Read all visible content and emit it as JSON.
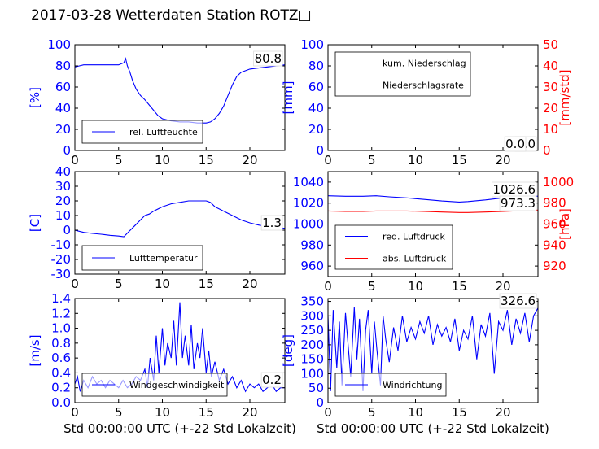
{
  "title": "2017-03-28 Wetterdaten Station ROTZ□",
  "colors": {
    "primary": "#0000ff",
    "secondary": "#ff0000",
    "axis": "#000000"
  },
  "chart_data": [
    {
      "type": "line",
      "id": "humidity",
      "ylabel": "[%]",
      "xlim": [
        0,
        24
      ],
      "ylim": [
        0,
        100
      ],
      "xticks": [
        0,
        5,
        10,
        15,
        20
      ],
      "yticks": [
        0,
        20,
        40,
        60,
        80,
        100
      ],
      "legend_position": "lower-left",
      "grid": false,
      "series": [
        {
          "name": "rel. Luftfeuchte",
          "color": "#0000ff",
          "current_label": "80.8",
          "x": [
            0,
            0.5,
            1,
            2,
            3,
            4,
            5,
            5.6,
            5.8,
            6.0,
            6.3,
            6.6,
            7.0,
            7.5,
            8.0,
            8.5,
            9.0,
            9.5,
            10,
            11,
            12,
            13,
            14,
            15,
            15.5,
            16,
            16.5,
            17,
            17.5,
            18,
            18.5,
            19,
            20,
            21,
            22,
            23,
            24
          ],
          "y": [
            79,
            80,
            81,
            81,
            81,
            81,
            81,
            83,
            87,
            80,
            74,
            66,
            58,
            52,
            48,
            43,
            38,
            33,
            30,
            28,
            27,
            27,
            26,
            26,
            27,
            30,
            35,
            42,
            52,
            62,
            70,
            74,
            77,
            78,
            79,
            80,
            81
          ]
        }
      ]
    },
    {
      "type": "line",
      "id": "precipitation",
      "ylabel": "[mm]",
      "y2label": "[mm/std]",
      "xlim": [
        0,
        24
      ],
      "ylim": [
        0,
        100
      ],
      "y2lim": [
        0,
        50
      ],
      "xticks": [
        0,
        5,
        10,
        15,
        20
      ],
      "yticks": [
        0,
        20,
        40,
        60,
        80,
        100
      ],
      "y2ticks": [
        0,
        10,
        20,
        30,
        40,
        50
      ],
      "legend_position": "upper-left",
      "grid": false,
      "series": [
        {
          "name": "kum. Niederschlag",
          "color": "#0000ff",
          "axis": "left",
          "current_label": "0.0",
          "x": [
            0,
            24
          ],
          "y": [
            0,
            0
          ]
        },
        {
          "name": "Niederschlagsrate",
          "color": "#ff0000",
          "axis": "right",
          "current_label": "0.0",
          "x": [
            0,
            24
          ],
          "y": [
            0,
            0
          ]
        }
      ]
    },
    {
      "type": "line",
      "id": "temperature",
      "ylabel": "[C]",
      "xlim": [
        0,
        24
      ],
      "ylim": [
        -30,
        40
      ],
      "xticks": [
        0,
        5,
        10,
        15,
        20
      ],
      "yticks": [
        -30,
        -20,
        -10,
        0,
        10,
        20,
        30,
        40
      ],
      "legend_position": "lower-left",
      "grid": false,
      "series": [
        {
          "name": "Lufttemperatur",
          "color": "#0000ff",
          "current_label": "1.3",
          "x": [
            0,
            1,
            2,
            3,
            4,
            5,
            5.6,
            6.0,
            6.5,
            7,
            7.5,
            8,
            8.5,
            9,
            10,
            11,
            12,
            13,
            14,
            15,
            15.5,
            16,
            17,
            18,
            19,
            20,
            21,
            22,
            23,
            24
          ],
          "y": [
            0,
            -1.5,
            -2.2,
            -2.8,
            -3.5,
            -4,
            -4.5,
            -2,
            1,
            4,
            7,
            10,
            11,
            13,
            16,
            18,
            19,
            20,
            20,
            20,
            19,
            16,
            13,
            10,
            7,
            5,
            3.5,
            2.5,
            1.8,
            1.3
          ]
        }
      ]
    },
    {
      "type": "line",
      "id": "pressure",
      "ylabel": "",
      "y2label": "[hPa]",
      "xlim": [
        0,
        24
      ],
      "ylim": [
        950,
        1050
      ],
      "y2lim": [
        910,
        1010
      ],
      "xticks": [
        0,
        5,
        10,
        15,
        20
      ],
      "yticks": [
        960,
        980,
        1000,
        1020,
        1040
      ],
      "y2ticks": [
        920,
        940,
        960,
        980,
        1000
      ],
      "legend_position": "lower-left",
      "grid": false,
      "series": [
        {
          "name": "red. Luftdruck",
          "color": "#0000ff",
          "axis": "left",
          "current_label": "1026.6",
          "x": [
            0,
            2,
            4,
            5.5,
            7,
            9,
            11,
            13,
            15,
            16,
            18,
            20,
            22,
            24
          ],
          "y": [
            1027,
            1026.5,
            1026.5,
            1027,
            1026,
            1025,
            1023.5,
            1022,
            1021,
            1021.5,
            1023,
            1025,
            1026,
            1026.6
          ]
        },
        {
          "name": "abs. Luftdruck",
          "color": "#ff0000",
          "axis": "right",
          "current_label": "973.3",
          "x": [
            0,
            2,
            4,
            5.5,
            7,
            9,
            11,
            13,
            15,
            16,
            18,
            20,
            22,
            24
          ],
          "y": [
            972.5,
            972,
            972,
            972.5,
            972.5,
            972.5,
            972,
            971.5,
            971,
            971,
            971.5,
            972,
            972.8,
            973.3
          ]
        }
      ]
    },
    {
      "type": "line",
      "id": "windspeed",
      "ylabel": "[m/s]",
      "xlim": [
        0,
        24
      ],
      "ylim": [
        0,
        1.4
      ],
      "xticks": [
        0,
        5,
        10,
        15,
        20
      ],
      "yticks": [
        0.0,
        0.2,
        0.4,
        0.6,
        0.8,
        1.0,
        1.2,
        1.4
      ],
      "legend_position": "lower-left",
      "grid": false,
      "series": [
        {
          "name": "Windgeschwindigkeit",
          "color": "#0000ff",
          "current_label": "0.2",
          "x": [
            0,
            0.3,
            0.6,
            1,
            1.5,
            2,
            2.5,
            3,
            3.5,
            4,
            4.5,
            5,
            5.5,
            6,
            6.5,
            7,
            7.5,
            8,
            8.3,
            8.6,
            9,
            9.3,
            9.6,
            10,
            10.3,
            10.6,
            11,
            11.3,
            11.6,
            12,
            12.3,
            12.6,
            13,
            13.3,
            13.6,
            14,
            14.3,
            14.6,
            15,
            15.3,
            15.6,
            16,
            16.5,
            17,
            17.5,
            18,
            18.5,
            19,
            19.5,
            20,
            20.5,
            21,
            21.5,
            22,
            22.5,
            23,
            23.5,
            24
          ],
          "y": [
            0.25,
            0.35,
            0.15,
            0.3,
            0.2,
            0.35,
            0.25,
            0.3,
            0.2,
            0.3,
            0.25,
            0.2,
            0.3,
            0.2,
            0.25,
            0.35,
            0.3,
            0.45,
            0.2,
            0.6,
            0.3,
            0.9,
            0.4,
            1.0,
            0.5,
            0.8,
            0.6,
            1.1,
            0.5,
            1.35,
            0.6,
            0.9,
            0.5,
            1.05,
            0.45,
            0.8,
            0.6,
            1.0,
            0.4,
            0.7,
            0.35,
            0.55,
            0.3,
            0.45,
            0.25,
            0.35,
            0.2,
            0.3,
            0.15,
            0.25,
            0.2,
            0.25,
            0.15,
            0.2,
            0.25,
            0.15,
            0.2,
            0.2
          ]
        }
      ]
    },
    {
      "type": "line",
      "id": "winddirection",
      "ylabel": "[deg]",
      "xlabel": "Std 00:00:00 UTC (+-22 Std Lokalzeit)",
      "xlim": [
        0,
        24
      ],
      "ylim": [
        0,
        360
      ],
      "xticks": [
        0,
        5,
        10,
        15,
        20
      ],
      "yticks": [
        0,
        50,
        100,
        150,
        200,
        250,
        300,
        350
      ],
      "legend_position": "lower-left",
      "grid": false,
      "series": [
        {
          "name": "Windrichtung",
          "color": "#0000ff",
          "current_label": "326.6",
          "x": [
            0,
            0.3,
            0.6,
            1,
            1.3,
            1.6,
            2,
            2.3,
            2.6,
            3,
            3.3,
            3.6,
            4,
            4.3,
            4.6,
            5,
            5.3,
            5.6,
            6,
            6.3,
            6.6,
            7,
            7.5,
            8,
            8.5,
            9,
            9.5,
            10,
            10.5,
            11,
            11.5,
            12,
            12.5,
            13,
            13.5,
            14,
            14.5,
            15,
            15.5,
            16,
            16.5,
            17,
            17.5,
            18,
            18.5,
            19,
            19.5,
            20,
            20.5,
            21,
            21.5,
            22,
            22.5,
            23,
            23.5,
            24
          ],
          "y": [
            300,
            40,
            320,
            120,
            280,
            60,
            310,
            200,
            90,
            330,
            150,
            290,
            40,
            250,
            320,
            100,
            280,
            180,
            60,
            300,
            220,
            140,
            260,
            180,
            300,
            210,
            260,
            220,
            280,
            240,
            300,
            200,
            270,
            230,
            260,
            210,
            290,
            180,
            250,
            220,
            300,
            150,
            270,
            230,
            310,
            100,
            280,
            250,
            320,
            200,
            290,
            240,
            310,
            210,
            300,
            327
          ]
        }
      ]
    }
  ]
}
